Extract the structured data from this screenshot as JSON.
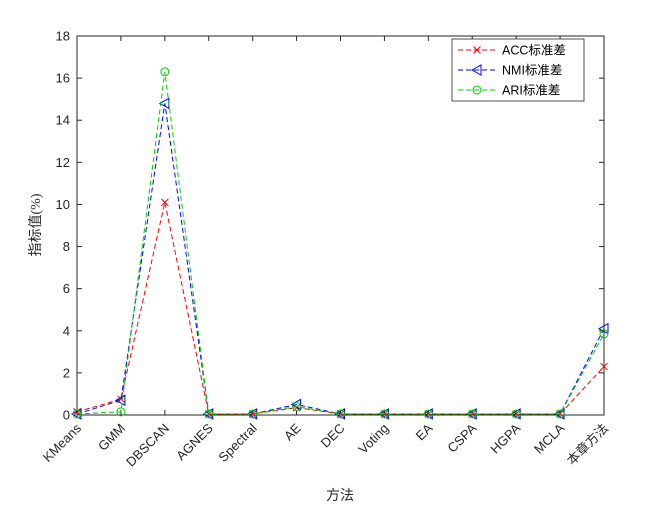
{
  "chart_data": {
    "type": "line",
    "categories": [
      "KMeans",
      "GMM",
      "DBSCAN",
      "AGNES",
      "Spectral",
      "AE",
      "DEC",
      "Voting",
      "EA",
      "CSPA",
      "HGPA",
      "MCLA",
      "本章方法"
    ],
    "series": [
      {
        "name": "ACC标准差",
        "color": "#ff0000",
        "marker": "x",
        "values": [
          0.15,
          0.75,
          10.1,
          0.05,
          0.05,
          0.35,
          0.05,
          0.05,
          0.05,
          0.05,
          0.05,
          0.05,
          2.3
        ]
      },
      {
        "name": "NMI标准差",
        "color": "#0000ff",
        "marker": "triangle-left",
        "values": [
          0.05,
          0.7,
          14.8,
          0.05,
          0.05,
          0.5,
          0.05,
          0.05,
          0.05,
          0.05,
          0.05,
          0.05,
          4.1
        ]
      },
      {
        "name": "ARI标准差",
        "color": "#00cc00",
        "marker": "circle",
        "values": [
          0.05,
          0.15,
          16.3,
          0.05,
          0.05,
          0.4,
          0.05,
          0.05,
          0.05,
          0.05,
          0.05,
          0.05,
          3.85
        ]
      }
    ],
    "xlabel": "方法",
    "ylabel": "指标值(%)",
    "ylim": [
      0,
      18
    ],
    "yticks": [
      0,
      2,
      4,
      6,
      8,
      10,
      12,
      14,
      16,
      18
    ],
    "grid": false,
    "legend_position": "top-right"
  }
}
